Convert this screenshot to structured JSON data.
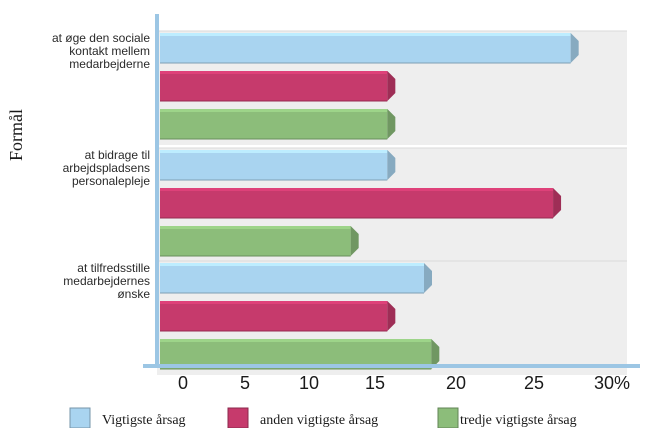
{
  "chart_data": {
    "type": "bar",
    "orientation": "horizontal",
    "categories": [
      [
        "at øge den sociale",
        "kontakt mellem",
        "medarbejderne"
      ],
      [
        "at bidrage til",
        "arbejdspladsens",
        "personalepleje"
      ],
      [
        "at tilfredsstille",
        "medarbejdernes",
        "ønske"
      ]
    ],
    "series": [
      {
        "name": "Vigtigste årsag",
        "color": "#a9d4f0",
        "values": [
          28,
          15.5,
          18
        ]
      },
      {
        "name": "anden vigtigste årsag",
        "color": "#c63a6c",
        "values": [
          15.5,
          26.8,
          15.5
        ]
      },
      {
        "name": "tredje vigtigste årsag",
        "color": "#8cbd7a",
        "values": [
          15.5,
          13,
          18.5
        ]
      }
    ],
    "ylabel": "Formål",
    "xlim": [
      0,
      30
    ],
    "xticks": [
      "0",
      "5",
      "10",
      "15",
      "20",
      "25",
      "30%"
    ],
    "legend_position": "bottom"
  }
}
